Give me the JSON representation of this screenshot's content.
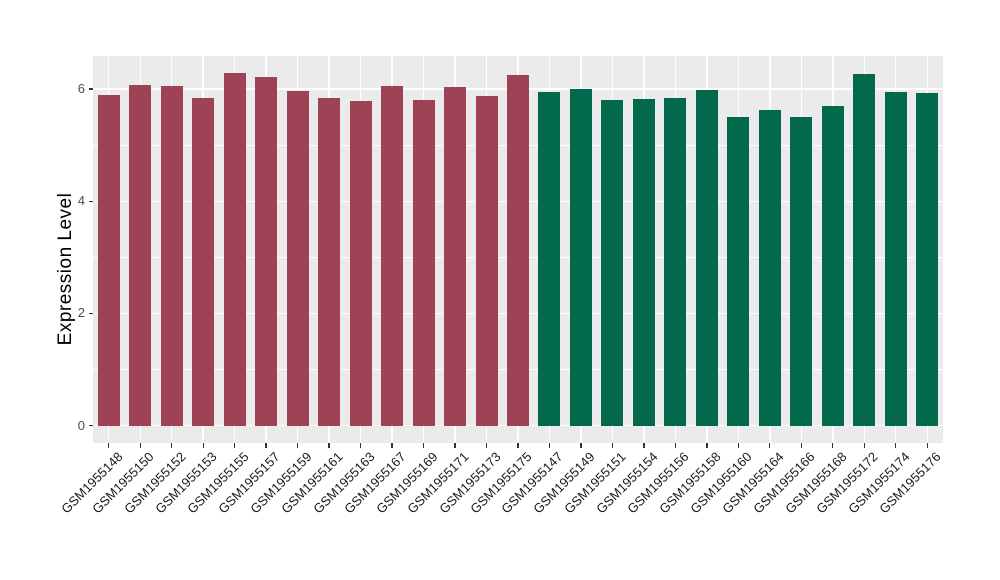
{
  "chart_data": {
    "type": "bar",
    "title": "",
    "xlabel": "",
    "ylabel": "Expression Level",
    "y_ticks": {
      "major": [
        0,
        2,
        4,
        6
      ],
      "minor": [
        1,
        3,
        5
      ]
    },
    "ylim_display": [
      -0.31,
      6.59
    ],
    "grid": "major and minor horizontal + major vertical, white on gray",
    "legend_position": "none",
    "x_label_angle": 45,
    "colors": {
      "panel_background": "#EBEBEB",
      "gridline": "#FFFFFF",
      "group_palette": [
        "#9E4356",
        "#02694D"
      ],
      "axis_text": "#1a1a1a",
      "y_tick_text": "#4d4d4d"
    },
    "bars": [
      {
        "label": "GSM1955148",
        "value": 5.9,
        "group": 0
      },
      {
        "label": "GSM1955150",
        "value": 6.07,
        "group": 0
      },
      {
        "label": "GSM1955152",
        "value": 6.05,
        "group": 0
      },
      {
        "label": "GSM1955153",
        "value": 5.85,
        "group": 0
      },
      {
        "label": "GSM1955155",
        "value": 6.28,
        "group": 0
      },
      {
        "label": "GSM1955157",
        "value": 6.22,
        "group": 0
      },
      {
        "label": "GSM1955159",
        "value": 5.97,
        "group": 0
      },
      {
        "label": "GSM1955161",
        "value": 5.85,
        "group": 0
      },
      {
        "label": "GSM1955163",
        "value": 5.78,
        "group": 0
      },
      {
        "label": "GSM1955167",
        "value": 6.05,
        "group": 0
      },
      {
        "label": "GSM1955169",
        "value": 5.81,
        "group": 0
      },
      {
        "label": "GSM1955171",
        "value": 6.04,
        "group": 0
      },
      {
        "label": "GSM1955173",
        "value": 5.87,
        "group": 0
      },
      {
        "label": "GSM1955175",
        "value": 6.26,
        "group": 0
      },
      {
        "label": "GSM1955147",
        "value": 5.95,
        "group": 1
      },
      {
        "label": "GSM1955149",
        "value": 6.01,
        "group": 1
      },
      {
        "label": "GSM1955151",
        "value": 5.81,
        "group": 1
      },
      {
        "label": "GSM1955154",
        "value": 5.83,
        "group": 1
      },
      {
        "label": "GSM1955156",
        "value": 5.85,
        "group": 1
      },
      {
        "label": "GSM1955158",
        "value": 5.98,
        "group": 1
      },
      {
        "label": "GSM1955160",
        "value": 5.51,
        "group": 1
      },
      {
        "label": "GSM1955164",
        "value": 5.62,
        "group": 1
      },
      {
        "label": "GSM1955166",
        "value": 5.5,
        "group": 1
      },
      {
        "label": "GSM1955168",
        "value": 5.7,
        "group": 1
      },
      {
        "label": "GSM1955172",
        "value": 6.27,
        "group": 1
      },
      {
        "label": "GSM1955174",
        "value": 5.95,
        "group": 1
      },
      {
        "label": "GSM1955176",
        "value": 5.93,
        "group": 1
      }
    ]
  }
}
